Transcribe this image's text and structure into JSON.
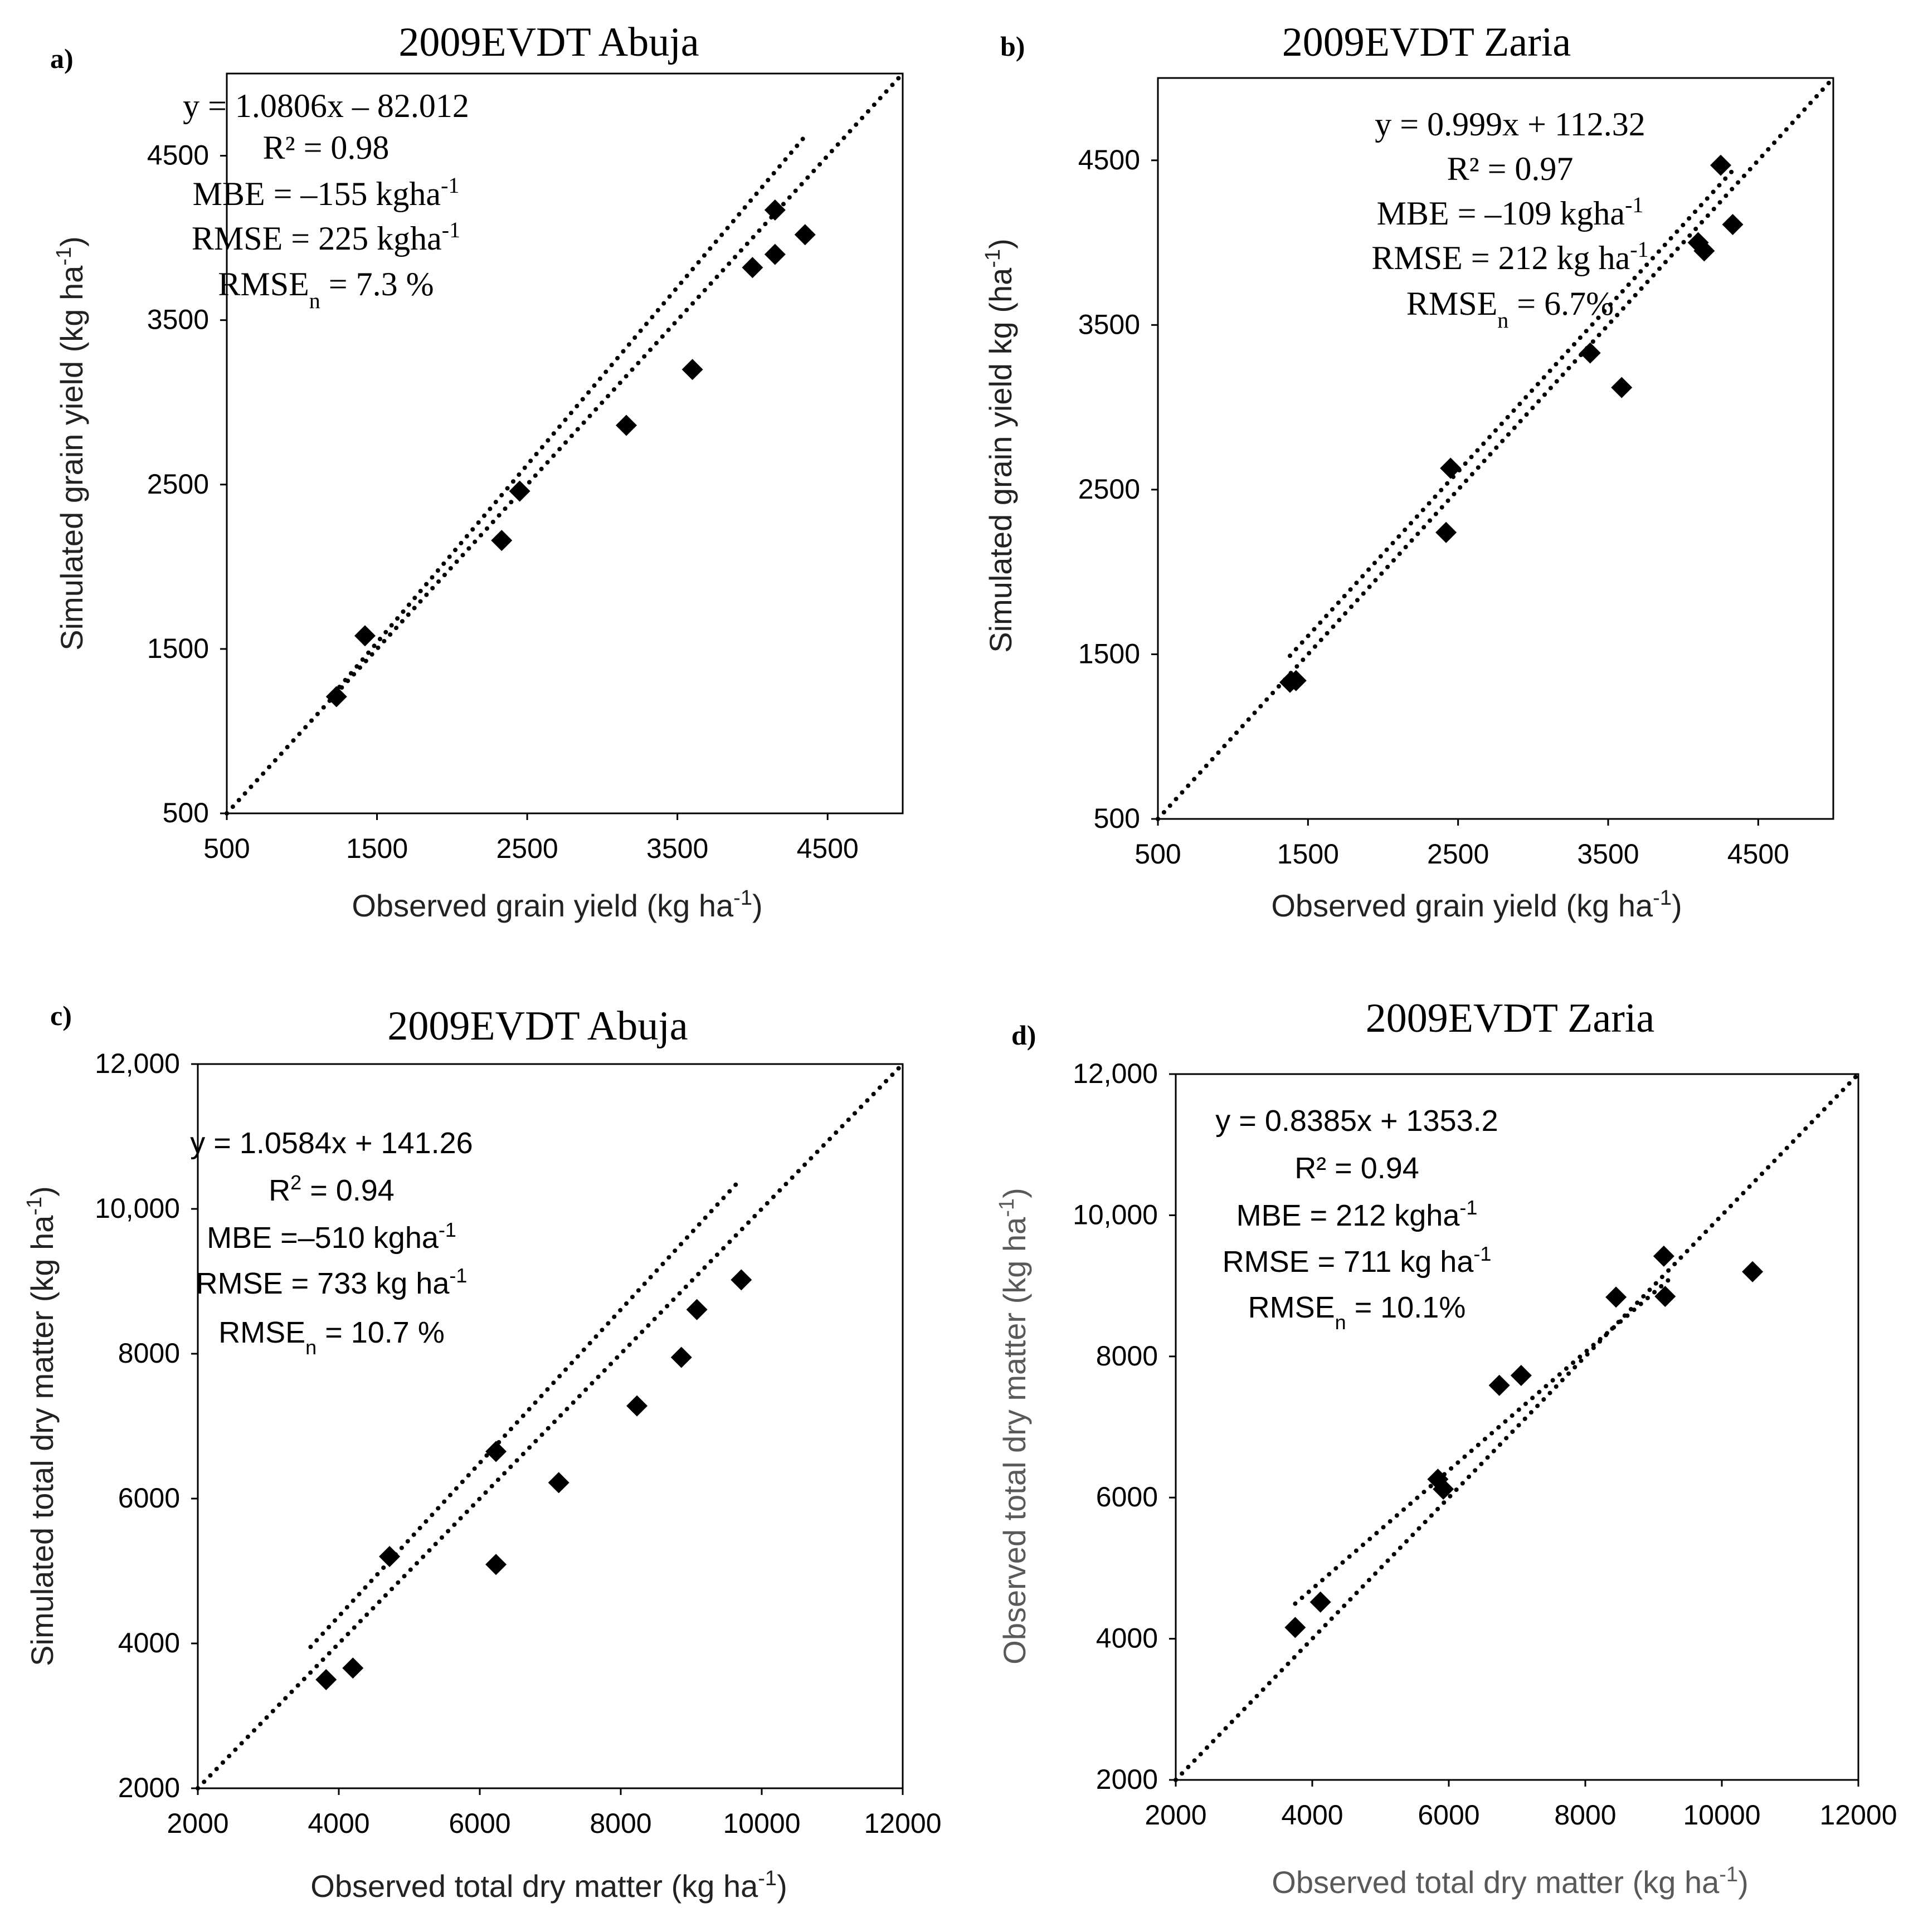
{
  "figure": {
    "description_hidden": false
  },
  "chart_data": [
    {
      "id": "a",
      "type": "scatter",
      "panel_label": "a)",
      "title": "2009EVDT Abuja",
      "xlabel": "Observed grain yield (kg ha",
      "ylabel": "Simulated grain yield (kg ha",
      "unit_sup": "-1",
      "unit_close": ")",
      "xlim": [
        500,
        5000
      ],
      "ylim": [
        500,
        5000
      ],
      "xticks": [
        500,
        1500,
        2500,
        3500,
        4500
      ],
      "yticks": [
        500,
        1500,
        2500,
        3500,
        4500
      ],
      "xtick_labels": [
        "500",
        "1500",
        "2500",
        "3500",
        "4500"
      ],
      "ytick_labels": [
        "500",
        "1500",
        "2500",
        "3500",
        "4500"
      ],
      "label_color": "#222222",
      "points": [
        {
          "x": 1230,
          "y": 1210
        },
        {
          "x": 1420,
          "y": 1580
        },
        {
          "x": 2330,
          "y": 2160
        },
        {
          "x": 2450,
          "y": 2460
        },
        {
          "x": 3160,
          "y": 2860
        },
        {
          "x": 3600,
          "y": 3200
        },
        {
          "x": 4000,
          "y": 3820
        },
        {
          "x": 4150,
          "y": 3900
        },
        {
          "x": 4150,
          "y": 4170
        },
        {
          "x": 4350,
          "y": 4020
        }
      ],
      "lines": [
        {
          "name": "1:1",
          "slope": 1.0,
          "intercept": 0,
          "x0": 500,
          "x1": 5000
        },
        {
          "name": "regression",
          "slope": 1.0806,
          "intercept": -82.012,
          "x0": 1250,
          "x1": 4350
        }
      ],
      "annotations": [
        {
          "parts": [
            {
              "t": "y = 1.0806x – 82.012"
            }
          ]
        },
        {
          "parts": [
            {
              "t": "R² = 0.98"
            }
          ]
        },
        {
          "parts": [
            {
              "t": "MBE = –155 kgha"
            },
            {
              "t": "-1",
              "sup": true
            }
          ]
        },
        {
          "parts": [
            {
              "t": "RMSE = 225 kgha"
            },
            {
              "t": "-1",
              "sup": true
            }
          ]
        },
        {
          "parts": [
            {
              "t": "RMSE"
            },
            {
              "t": "n",
              "sub": true
            },
            {
              "t": " = 7.3 %"
            }
          ]
        }
      ]
    },
    {
      "id": "b",
      "type": "scatter",
      "panel_label": "b)",
      "title": "2009EVDT Zaria",
      "xlabel": "Observed grain yield (kg ha",
      "ylabel": "Simulated grain yield kg (ha",
      "unit_sup": "-1",
      "unit_close": ")",
      "xlim": [
        500,
        5000
      ],
      "ylim": [
        500,
        5000
      ],
      "xticks": [
        500,
        1500,
        2500,
        3500,
        4500
      ],
      "yticks": [
        500,
        1500,
        2500,
        3500,
        4500
      ],
      "xtick_labels": [
        "500",
        "1500",
        "2500",
        "3500",
        "4500"
      ],
      "ytick_labels": [
        "500",
        "1500",
        "2500",
        "3500",
        "4500"
      ],
      "label_color": "#222222",
      "points": [
        {
          "x": 1380,
          "y": 1330
        },
        {
          "x": 1420,
          "y": 1340
        },
        {
          "x": 2420,
          "y": 2240
        },
        {
          "x": 2450,
          "y": 2630
        },
        {
          "x": 3380,
          "y": 3330
        },
        {
          "x": 3590,
          "y": 3120
        },
        {
          "x": 4100,
          "y": 4000
        },
        {
          "x": 4140,
          "y": 3950
        },
        {
          "x": 4250,
          "y": 4470
        },
        {
          "x": 4330,
          "y": 4110
        }
      ],
      "lines": [
        {
          "name": "1:1",
          "slope": 1.0,
          "intercept": 0,
          "x0": 500,
          "x1": 5000
        },
        {
          "name": "regression",
          "slope": 0.999,
          "intercept": 112.32,
          "x0": 1380,
          "x1": 4330
        }
      ],
      "annotations": [
        {
          "parts": [
            {
              "t": "y = 0.999x + 112.32"
            }
          ]
        },
        {
          "parts": [
            {
              "t": "R² = 0.97"
            }
          ]
        },
        {
          "parts": [
            {
              "t": "MBE = –109 kgha"
            },
            {
              "t": "-1",
              "sup": true
            }
          ]
        },
        {
          "parts": [
            {
              "t": "RMSE = 212 kg ha"
            },
            {
              "t": "-1",
              "sup": true
            }
          ]
        },
        {
          "parts": [
            {
              "t": "RMSE"
            },
            {
              "t": "n",
              "sub": true
            },
            {
              "t": " = 6.7%"
            }
          ]
        }
      ]
    },
    {
      "id": "c",
      "type": "scatter",
      "panel_label": "c)",
      "title": "2009EVDT Abuja",
      "xlabel": "Observed total dry matter (kg ha",
      "ylabel": "Simulated total dry matter (kg ha",
      "unit_sup": "-1",
      "unit_close": ")",
      "xlim": [
        2000,
        12000
      ],
      "ylim": [
        2000,
        12000
      ],
      "xticks": [
        2000,
        4000,
        6000,
        8000,
        10000,
        12000
      ],
      "yticks": [
        2000,
        4000,
        6000,
        8000,
        10000,
        12000
      ],
      "xtick_labels": [
        "2000",
        "4000",
        "6000",
        "8000",
        "10000",
        "12000"
      ],
      "ytick_labels": [
        "2000",
        "4000",
        "6000",
        "8000",
        "10,000",
        "12,000"
      ],
      "label_color": "#222222",
      "points": [
        {
          "x": 3820,
          "y": 3500
        },
        {
          "x": 4200,
          "y": 3660
        },
        {
          "x": 4720,
          "y": 5200
        },
        {
          "x": 6230,
          "y": 6650
        },
        {
          "x": 6230,
          "y": 5090
        },
        {
          "x": 7120,
          "y": 6220
        },
        {
          "x": 8230,
          "y": 7280
        },
        {
          "x": 8860,
          "y": 7950
        },
        {
          "x": 9080,
          "y": 8610
        },
        {
          "x": 9710,
          "y": 9020
        }
      ],
      "lines": [
        {
          "name": "1:1",
          "slope": 1.0,
          "intercept": 0,
          "x0": 2000,
          "x1": 12000
        },
        {
          "name": "regression",
          "slope": 1.0584,
          "intercept": 141.26,
          "x0": 3600,
          "x1": 9700
        }
      ],
      "annotations": [
        {
          "parts": [
            {
              "t": "y = 1.0584x + 141.26"
            }
          ]
        },
        {
          "parts": [
            {
              "t": "R"
            },
            {
              "t": "2",
              "sup": true
            },
            {
              "t": " = 0.94"
            }
          ]
        },
        {
          "parts": [
            {
              "t": "MBE =–510 kgha"
            },
            {
              "t": "-1",
              "sup": true
            }
          ]
        },
        {
          "parts": [
            {
              "t": "RMSE = 733 kg ha"
            },
            {
              "t": "-1",
              "sup": true
            }
          ]
        },
        {
          "parts": [
            {
              "t": "RMSE"
            },
            {
              "t": "n",
              "sub": true
            },
            {
              "t": " = 10.7 %"
            }
          ]
        }
      ]
    },
    {
      "id": "d",
      "type": "scatter",
      "panel_label": "d)",
      "title": "2009EVDT Zaria",
      "xlabel": "Observed total dry matter (kg ha",
      "ylabel": "Observed total dry matter (kg ha",
      "unit_sup": "-1",
      "unit_close": ")",
      "xlim": [
        2000,
        12000
      ],
      "ylim": [
        2000,
        12000
      ],
      "xticks": [
        2000,
        4000,
        6000,
        8000,
        10000,
        12000
      ],
      "yticks": [
        2000,
        4000,
        6000,
        8000,
        10000,
        12000
      ],
      "xtick_labels": [
        "2000",
        "4000",
        "6000",
        "8000",
        "10000",
        "12000"
      ],
      "ytick_labels": [
        "2000",
        "4000",
        "6000",
        "8000",
        "10,000",
        "12,000"
      ],
      "label_color": "#595959",
      "points": [
        {
          "x": 3750,
          "y": 4160
        },
        {
          "x": 4120,
          "y": 4520
        },
        {
          "x": 5840,
          "y": 6260
        },
        {
          "x": 5920,
          "y": 6120
        },
        {
          "x": 6740,
          "y": 7590
        },
        {
          "x": 7060,
          "y": 7730
        },
        {
          "x": 8450,
          "y": 8840
        },
        {
          "x": 9150,
          "y": 9420
        },
        {
          "x": 9170,
          "y": 8850
        },
        {
          "x": 10450,
          "y": 9200
        }
      ],
      "lines": [
        {
          "name": "1:1",
          "slope": 1.0,
          "intercept": 0,
          "x0": 2000,
          "x1": 12000
        },
        {
          "name": "regression",
          "slope": 0.8385,
          "intercept": 1353.2,
          "x0": 3750,
          "x1": 9300
        }
      ],
      "annotations": [
        {
          "parts": [
            {
              "t": "y = 0.8385x + 1353.2"
            }
          ]
        },
        {
          "parts": [
            {
              "t": "R² = 0.94"
            }
          ]
        },
        {
          "parts": [
            {
              "t": "MBE = 212 kgha"
            },
            {
              "t": "-1",
              "sup": true
            }
          ]
        },
        {
          "parts": [
            {
              "t": "RMSE = 711 kg ha"
            },
            {
              "t": "-1",
              "sup": true
            }
          ]
        },
        {
          "parts": [
            {
              "t": "RMSE"
            },
            {
              "t": "n",
              "sub": true
            },
            {
              "t": " = 10.1%"
            }
          ]
        }
      ]
    }
  ]
}
